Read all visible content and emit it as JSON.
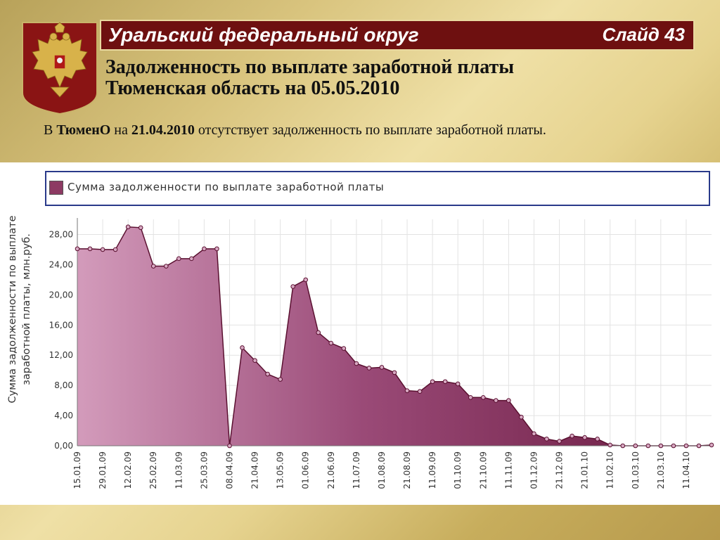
{
  "header": {
    "region": "Уральский федеральный округ",
    "slide": "Слайд 43"
  },
  "title": {
    "line1": "Задолженность по выплате заработной платы",
    "line2": "Тюменская область на 05.05.2010"
  },
  "note": {
    "prefix": "В ",
    "org": "ТюменО",
    "mid": " на ",
    "date": "21.04.2010",
    "suffix": " отсутствует задолженность по выплате заработной платы."
  },
  "chart_data": {
    "type": "area",
    "legend": "Сумма задолженности по выплате заработной платы",
    "ylabel": "Сумма задолженности по выплате заработной платы, млн.руб.",
    "xlabel": "",
    "ylim": [
      0,
      30
    ],
    "yticks": [
      "0,00",
      "4,00",
      "8,00",
      "12,00",
      "16,00",
      "20,00",
      "24,00",
      "28,00"
    ],
    "grid": true,
    "xtick_labels": [
      "15.01.09",
      "29.01.09",
      "12.02.09",
      "25.02.09",
      "11.03.09",
      "25.03.09",
      "08.04.09",
      "21.04.09",
      "13.05.09",
      "01.06.09",
      "21.06.09",
      "11.07.09",
      "01.08.09",
      "21.08.09",
      "11.09.09",
      "01.10.09",
      "21.10.09",
      "11.11.09",
      "01.12.09",
      "21.12.09",
      "21.01.10",
      "11.02.10",
      "01.03.10",
      "21.03.10",
      "11.04.10"
    ],
    "series": [
      {
        "name": "Сумма задолженности по выплате заработной платы",
        "color": "#8d3a63",
        "values": [
          26.1,
          26.1,
          26.0,
          26.0,
          29.0,
          28.9,
          23.8,
          23.8,
          24.8,
          24.8,
          26.1,
          26.1,
          0.0,
          13.0,
          11.3,
          9.5,
          8.8,
          21.1,
          22.0,
          15.0,
          13.6,
          12.9,
          10.9,
          10.3,
          10.4,
          9.7,
          7.3,
          7.2,
          8.5,
          8.5,
          8.2,
          6.4,
          6.4,
          6.0,
          6.0,
          3.8,
          1.6,
          0.9,
          0.6,
          1.3,
          1.1,
          0.9,
          0.1,
          0.0,
          0.0,
          0.0,
          0.0,
          0.0,
          0.0,
          0.0,
          0.1
        ]
      }
    ]
  }
}
